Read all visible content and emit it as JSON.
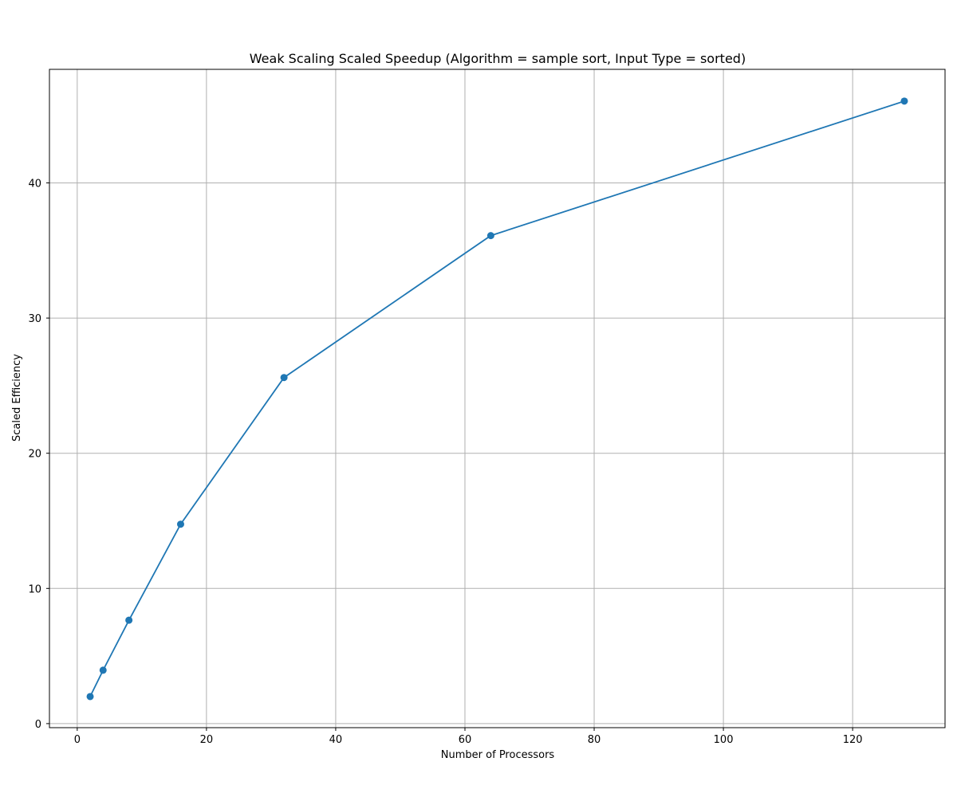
{
  "chart_data": {
    "type": "line",
    "title": "Weak Scaling Scaled Speedup (Algorithm = sample sort, Input Type = sorted)",
    "xlabel": "Number of Processors",
    "ylabel": "Scaled Efficiency",
    "xlim": [
      -4.3,
      134.3
    ],
    "ylim": [
      -0.3,
      48.4
    ],
    "xticks": [
      0,
      20,
      40,
      60,
      80,
      100,
      120
    ],
    "yticks": [
      0,
      10,
      20,
      30,
      40
    ],
    "grid": true,
    "series": [
      {
        "color": "#1f77b4",
        "marker": "circle",
        "x": [
          2,
          4,
          8,
          16,
          32,
          64,
          128
        ],
        "y": [
          2.0,
          3.95,
          7.65,
          14.75,
          25.6,
          36.1,
          46.05
        ]
      }
    ]
  }
}
